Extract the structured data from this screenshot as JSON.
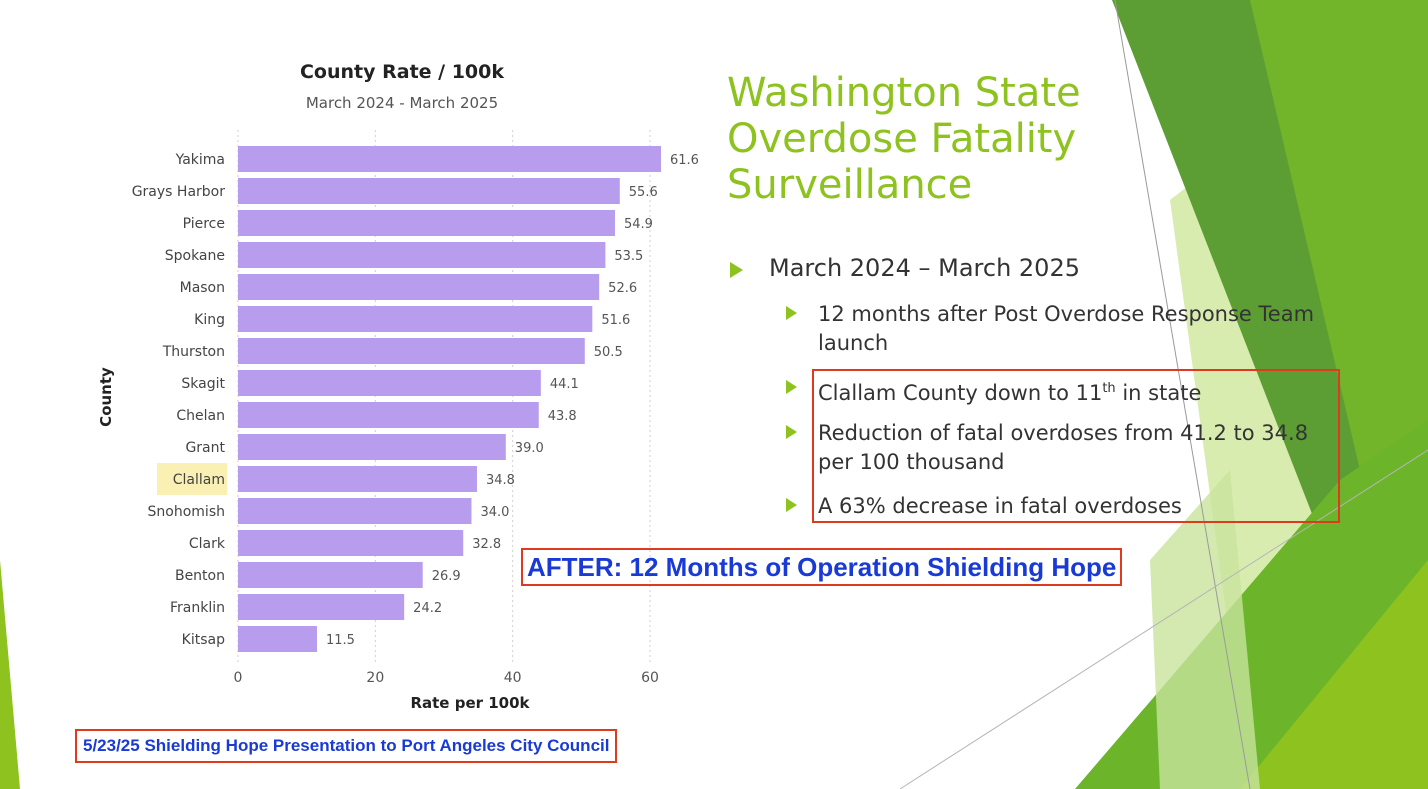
{
  "slide": {
    "title": "Washington State Overdose Fatality Surveillance",
    "bullet_main": "March 2024 – March 2025",
    "sub_bullets": [
      "12 months after Post Overdose Response Team launch",
      "Clallam County down to 11th in state",
      "Reduction of fatal overdoses from 41.2  to 34.8 per 100 thousand",
      "A 63% decrease in fatal overdoses"
    ],
    "sub_bullet_2_prefix": "Clallam County down to 11",
    "sub_bullet_2_sup": "th",
    "sub_bullet_2_suffix": " in state",
    "after_banner": "AFTER: 12 Months of Operation Shielding Hope",
    "footer": "5/23/25 Shielding Hope Presentation to Port Angeles City Council"
  },
  "colors": {
    "bar": "#b89ced",
    "highlight": "#faf0b4",
    "accent_green": "#8dc21f",
    "banner_blue": "#1a3ad6",
    "box_red": "#e03a1e"
  },
  "chart_data": {
    "type": "bar",
    "orientation": "horizontal",
    "title": "County Rate / 100k",
    "subtitle": "March 2024 - March 2025",
    "xlabel": "Rate per 100k",
    "ylabel": "County",
    "xlim": [
      0,
      62
    ],
    "xticks": [
      0,
      20,
      40,
      60
    ],
    "grid": true,
    "highlighted_category": "Clallam",
    "categories": [
      "Yakima",
      "Grays Harbor",
      "Pierce",
      "Spokane",
      "Mason",
      "King",
      "Thurston",
      "Skagit",
      "Chelan",
      "Grant",
      "Clallam",
      "Snohomish",
      "Clark",
      "Benton",
      "Franklin",
      "Kitsap"
    ],
    "values": [
      61.6,
      55.6,
      54.9,
      53.5,
      52.6,
      51.6,
      50.5,
      44.1,
      43.8,
      39.0,
      34.8,
      34.0,
      32.8,
      26.9,
      24.2,
      11.5
    ],
    "value_labels": [
      "61.6",
      "55.6",
      "54.9",
      "53.5",
      "52.6",
      "51.6",
      "50.5",
      "44.1",
      "43.8",
      "39.0",
      "34.8",
      "34.0",
      "32.8",
      "26.9",
      "24.2",
      "11.5"
    ]
  }
}
